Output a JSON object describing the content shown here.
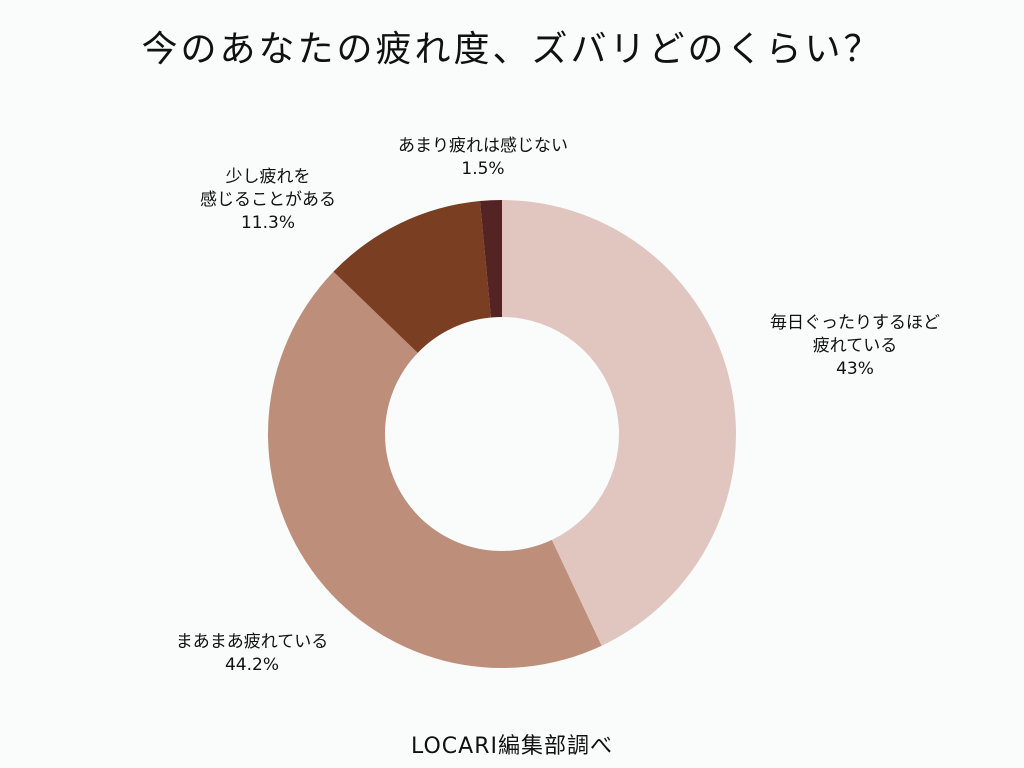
{
  "chart_data": {
    "type": "pie",
    "title": "今のあなたの疲れ度、ズバリどのくらい？",
    "donut": true,
    "start_angle_deg": 0,
    "direction": "clockwise",
    "categories": [
      "毎日ぐったりするほど疲れている",
      "まあまあ疲れている",
      "少し疲れを感じることがある",
      "あまり疲れは感じない"
    ],
    "values": [
      43,
      44.2,
      11.3,
      1.5
    ],
    "colors": [
      "#e0c6bf",
      "#bd8f7b",
      "#7a3e22",
      "#542323"
    ],
    "labels": [
      {
        "lines": [
          "毎日ぐったりするほど",
          "疲れている"
        ],
        "value": "43%"
      },
      {
        "lines": [
          "まあまあ疲れている"
        ],
        "value": "44.2%"
      },
      {
        "lines": [
          "少し疲れを",
          "感じることがある"
        ],
        "value": "11.3%"
      },
      {
        "lines": [
          "あまり疲れは感じない"
        ],
        "value": "1.5%"
      }
    ],
    "source": "LOCARI編集部調べ"
  }
}
